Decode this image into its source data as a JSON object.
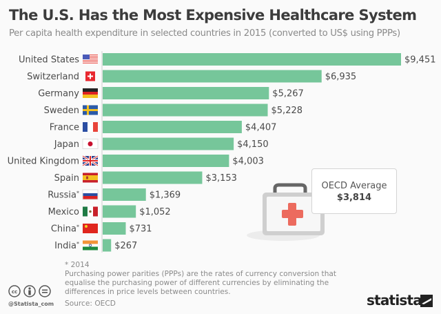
{
  "header": {
    "title": "The U.S. Has the Most Expensive Healthcare System",
    "subtitle": "Per capita health expenditure in selected countries in 2015 (converted to US$ using PPPs)"
  },
  "chart_data": {
    "type": "bar",
    "orientation": "horizontal",
    "title": "The U.S. Has the Most Expensive Healthcare System",
    "subtitle": "Per capita health expenditure in selected countries in 2015 (converted to US$ using PPPs)",
    "xlabel": "",
    "ylabel": "",
    "unit": "US$",
    "xlim": [
      0,
      9451
    ],
    "grid": false,
    "categories": [
      "United States",
      "Switzerland",
      "Germany",
      "Sweden",
      "France",
      "Japan",
      "United Kingdom",
      "Spain",
      "Russia*",
      "Mexico",
      "China*",
      "India*"
    ],
    "values": [
      9451,
      6935,
      5267,
      5228,
      4407,
      4150,
      4003,
      3153,
      1369,
      1052,
      731,
      267
    ],
    "value_labels": [
      "$9,451",
      "$6,935",
      "$5,267",
      "$5,228",
      "$4,407",
      "$4,150",
      "$4,003",
      "$3,153",
      "$1,369",
      "$1,052",
      "$731",
      "$267"
    ],
    "flags": [
      "us-flag-icon",
      "switzerland-flag-icon",
      "germany-flag-icon",
      "sweden-flag-icon",
      "france-flag-icon",
      "japan-flag-icon",
      "uk-flag-icon",
      "spain-flag-icon",
      "russia-flag-icon",
      "mexico-flag-icon",
      "china-flag-icon",
      "india-flag-icon"
    ],
    "bar_color": "#76c69a",
    "annotation": {
      "label": "OECD Average",
      "value": 3814,
      "value_label": "$3,814"
    }
  },
  "oecd": {
    "label": "OECD Average",
    "value": "$3,814"
  },
  "footer": {
    "note": "* 2014",
    "description": "Purchasing power parities (PPPs) are the rates of currency conversion that equalise the purchasing power of different currencies by eliminating the differences in price levels between countries.",
    "source": "Source: OECD",
    "handle": "@Statista_com",
    "logo": "statista",
    "license_icons": [
      "cc-icon",
      "by-icon",
      "nd-icon"
    ]
  }
}
